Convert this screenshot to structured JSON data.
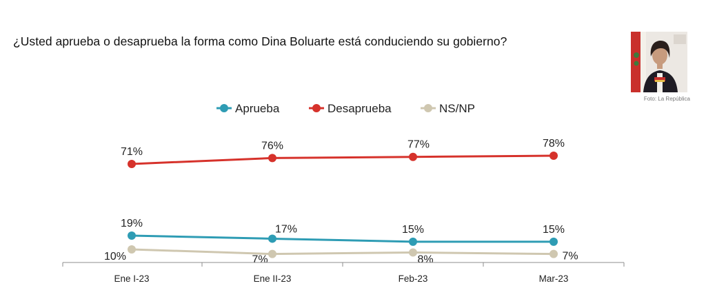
{
  "question": "¿Usted aprueba o desaprueba la forma como Dina Boluarte está conduciendo su gobierno?",
  "photo_credit": "Foto: La República",
  "chart_data": {
    "type": "line",
    "title": "",
    "xlabel": "",
    "ylabel": "",
    "categories": [
      "Ene I-23",
      "Ene II-23",
      "Feb-23",
      "Mar-23"
    ],
    "ylim": [
      0,
      100
    ],
    "grid": false,
    "legend_position": "top-center",
    "value_format": "%",
    "series": [
      {
        "name": "Aprueba",
        "color": "#2e9cb4",
        "values": [
          19,
          17,
          15,
          15
        ],
        "labels": [
          "19%",
          "17%",
          "15%",
          "15%"
        ]
      },
      {
        "name": "Desaprueba",
        "color": "#d6322b",
        "values": [
          71,
          76,
          77,
          78
        ],
        "labels": [
          "71%",
          "76%",
          "77%",
          "78%"
        ]
      },
      {
        "name": "NS/NP",
        "color": "#cfc7b0",
        "values": [
          10,
          7,
          8,
          7
        ],
        "labels": [
          "10%",
          "7%",
          "8%",
          "7%"
        ]
      }
    ]
  }
}
